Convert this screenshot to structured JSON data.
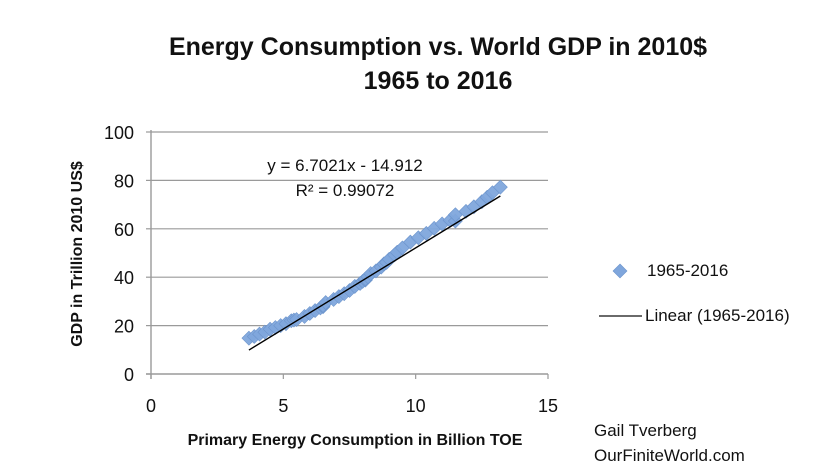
{
  "chart_data": {
    "type": "scatter",
    "title": "Energy Consumption vs. World GDP in 2010$",
    "subtitle": "1965 to 2016",
    "xlabel": "Primary Energy Consumption in Billion TOE",
    "ylabel": "GDP in Trillion 2010 US$",
    "xlim": [
      0,
      15
    ],
    "ylim": [
      0,
      100
    ],
    "xticks": [
      0,
      5,
      10,
      15
    ],
    "yticks": [
      0,
      20,
      40,
      60,
      80,
      100
    ],
    "grid": "horizontal",
    "legend_position": "right",
    "series": [
      {
        "name": "1965-2016",
        "marker": "diamond",
        "color": "#7fa6dc",
        "x": [
          3.7,
          3.9,
          4.1,
          4.3,
          4.5,
          4.7,
          4.9,
          5.1,
          5.3,
          5.4,
          5.5,
          5.8,
          6.0,
          6.2,
          6.4,
          6.5,
          6.5,
          6.5,
          6.6,
          6.9,
          7.1,
          7.3,
          7.5,
          7.7,
          7.9,
          8.0,
          8.1,
          8.1,
          8.2,
          8.3,
          8.5,
          8.7,
          8.8,
          8.9,
          9.0,
          9.2,
          9.3,
          9.5,
          9.8,
          10.1,
          10.4,
          10.7,
          11.0,
          11.3,
          11.5,
          11.5,
          11.9,
          12.2,
          12.5,
          12.7,
          12.9,
          13.2
        ],
        "y": [
          14.8,
          15.5,
          16.5,
          17.3,
          18.5,
          19.2,
          20.0,
          20.8,
          22.0,
          22.3,
          22.5,
          23.8,
          25.0,
          26.2,
          27.3,
          27.8,
          28.2,
          28.3,
          29.5,
          30.8,
          32.0,
          33.2,
          34.5,
          36.2,
          37.4,
          38.3,
          38.8,
          39.3,
          40.2,
          41.5,
          42.6,
          44.2,
          45.5,
          46.1,
          47.4,
          49.2,
          50.3,
          52.1,
          54.5,
          56.3,
          58.1,
          60.2,
          62.0,
          63.5,
          63.2,
          65.8,
          67.2,
          69.1,
          71.2,
          73.0,
          74.9,
          77.2
        ]
      }
    ],
    "trendline": {
      "name": "Linear (1965-2016)",
      "slope": 6.7021,
      "intercept": -14.912,
      "x_range": [
        3.7,
        13.2
      ],
      "color": "#000000",
      "equation_label": "y = 6.7021x - 14.912",
      "r2_label": "R² = 0.99072"
    }
  },
  "credit": {
    "line1": "Gail Tverberg",
    "line2": "OurFiniteWorld.com"
  }
}
